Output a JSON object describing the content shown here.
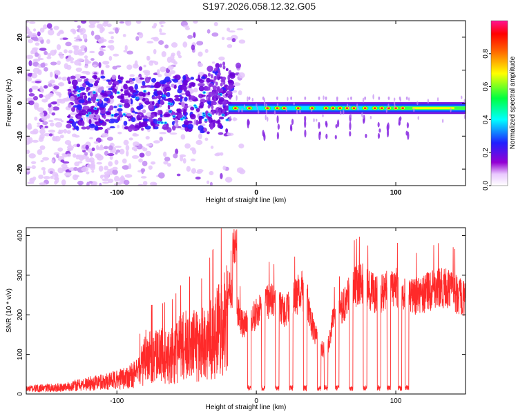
{
  "title": "S197.2026.058.12.32.G05",
  "chart_data": [
    {
      "type": "heatmap",
      "name": "spectrogram",
      "xlabel": "Height of straight line (km)",
      "ylabel": "Frequency (Hz)",
      "xlim": [
        -165,
        150
      ],
      "ylim": [
        -25,
        25
      ],
      "xticks": [
        -100,
        0,
        100
      ],
      "yticks": [
        -20,
        -10,
        0,
        10,
        20
      ],
      "colorbar": {
        "label": "Normalized spectral amplitude",
        "range": [
          0,
          1
        ],
        "ticks": [
          0.0,
          0.2,
          0.4,
          0.6,
          0.8
        ],
        "tick_labels": [
          "0.0",
          "0.2",
          "0.4",
          "0.6",
          "0.8"
        ],
        "colors": [
          "#ffffff",
          "#9400d3",
          "#0000ff",
          "#00ffff",
          "#00ff00",
          "#ffff00",
          "#ff0000",
          "#ff00a0"
        ]
      },
      "dominant_frequency_hz": -1.5,
      "notes": "Noisy scattered energy below -20 km, concentrated tone near -1.5 Hz above -20 km"
    },
    {
      "type": "line",
      "name": "snr",
      "xlabel": "Height of straight line (km)",
      "ylabel": "SNR (10 * v/v)",
      "xlim": [
        -165,
        150
      ],
      "ylim": [
        0,
        420
      ],
      "xticks": [
        -100,
        0,
        100
      ],
      "yticks": [
        0,
        100,
        200,
        300,
        400
      ],
      "line_color": "#ff2a2a",
      "envelope": {
        "x": [
          -165,
          -140,
          -120,
          -100,
          -85,
          -80,
          -70,
          -60,
          -50,
          -40,
          -30,
          -20,
          -10,
          0,
          10,
          20,
          30,
          35,
          40,
          45,
          50,
          55,
          60,
          70,
          75,
          80,
          85,
          90,
          95,
          100,
          105,
          110,
          120,
          130,
          140,
          150
        ],
        "y": [
          20,
          25,
          40,
          55,
          80,
          150,
          150,
          160,
          200,
          190,
          250,
          310,
          200,
          230,
          270,
          240,
          290,
          300,
          200,
          140,
          120,
          210,
          240,
          310,
          320,
          300,
          290,
          290,
          300,
          310,
          290,
          280,
          290,
          305,
          300,
          270
        ]
      },
      "dropouts_x": [
        -5,
        5,
        15,
        25,
        35,
        45,
        50,
        58,
        68,
        78,
        88,
        95,
        103,
        108
      ]
    }
  ]
}
